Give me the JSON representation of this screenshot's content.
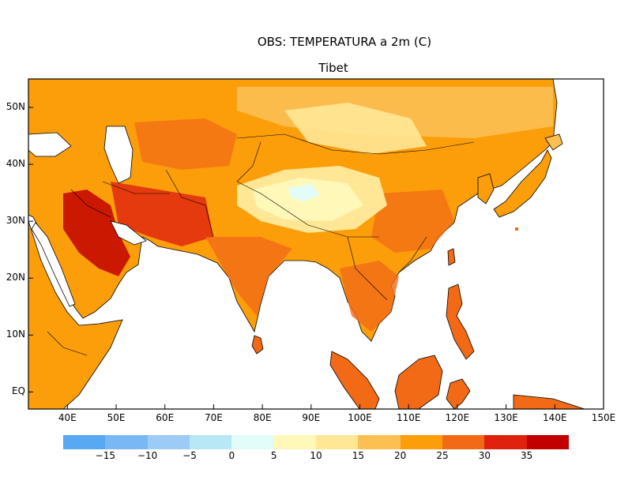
{
  "title_line1": "OBS: TEMPERATURA a 2m (C)",
  "title_line2": "Tibet",
  "lat_labels": [
    "50N",
    "40N",
    "30N",
    "20N",
    "10N",
    "EQ"
  ],
  "lat_values": [
    50,
    40,
    30,
    20,
    10,
    0
  ],
  "lon_labels": [
    "40E",
    "50E",
    "60E",
    "70E",
    "80E",
    "90E",
    "100E",
    "110E",
    "120E",
    "130E",
    "140E",
    "150E"
  ],
  "lon_values": [
    40,
    50,
    60,
    70,
    80,
    90,
    100,
    110,
    120,
    130,
    140,
    150
  ],
  "extent": {
    "lon_min": 32,
    "lon_max": 150,
    "lat_min": -3,
    "lat_max": 55
  },
  "colorbar": {
    "colors": [
      "#58a8f2",
      "#7ab8f4",
      "#9ccbf6",
      "#b8e8f6",
      "#e2fcfa",
      "#fff8b8",
      "#ffe796",
      "#fbbf52",
      "#fb9e0a",
      "#f26a16",
      "#e0210e",
      "#c20000"
    ],
    "tick_labels": [
      "-15",
      "-10",
      "-5",
      "0",
      "5",
      "10",
      "15",
      "20",
      "25",
      "30",
      "35"
    ]
  },
  "colors": {
    "ocean": "#ffffff",
    "border": "#000000"
  }
}
